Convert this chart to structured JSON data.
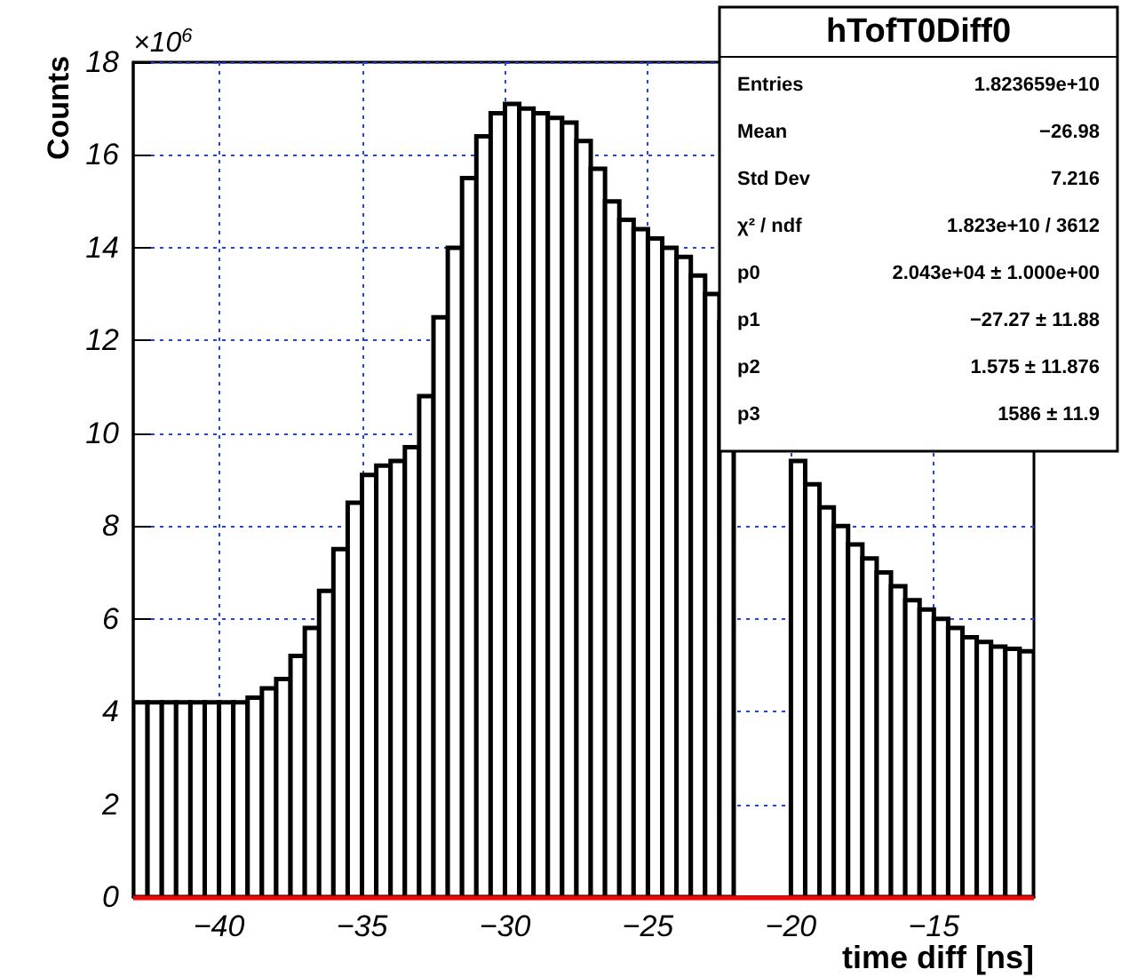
{
  "chart_data": {
    "type": "histogram",
    "title": "hTofT0Diff0",
    "xlabel": "time diff [ns]",
    "ylabel": "Counts",
    "bins": [
      -43,
      -42.5,
      -42,
      -41.5,
      -41,
      -40.5,
      -40,
      -39.5,
      -39,
      -38.5,
      -38,
      -37.5,
      -37,
      -36.5,
      -36,
      -35.5,
      -35,
      -34.5,
      -34,
      -33.5,
      -33,
      -32.5,
      -32,
      -31.5,
      -31,
      -30.5,
      -30,
      -29.5,
      -29,
      -28.5,
      -28,
      -27.5,
      -27,
      -26.5,
      -26,
      -25.5,
      -25,
      -24.5,
      -24,
      -23.5,
      -23,
      -22.5,
      -22,
      -21.5,
      -21,
      -20.5,
      -20,
      -19.5,
      -19,
      -18.5,
      -18,
      -17.5,
      -17,
      -16.5,
      -16,
      -15.5,
      -15,
      -14.5,
      -14,
      -13.5,
      -13,
      -12.5,
      -12,
      -11.5
    ],
    "values": [
      4.2,
      4.2,
      4.2,
      4.2,
      4.2,
      4.2,
      4.2,
      4.2,
      4.3,
      4.5,
      4.7,
      5.2,
      5.8,
      6.6,
      7.5,
      8.5,
      9.1,
      9.3,
      9.4,
      9.7,
      10.8,
      12.5,
      14.0,
      15.5,
      16.4,
      16.9,
      17.1,
      17.0,
      16.9,
      16.8,
      16.7,
      16.3,
      15.7,
      15.0,
      14.6,
      14.4,
      14.2,
      14.0,
      13.8,
      13.4,
      13.0,
      12.4,
      null,
      null,
      null,
      null,
      9.4,
      8.9,
      8.4,
      8.0,
      7.6,
      7.3,
      7.0,
      6.7,
      6.4,
      6.2,
      6.0,
      5.8,
      5.6,
      5.5,
      5.4,
      5.35,
      5.3
    ],
    "color": "#000000",
    "xlim": [
      -43,
      -11.5
    ],
    "xticks": [
      -40,
      -35,
      -30,
      -25,
      -20,
      -15
    ],
    "ylim": [
      0,
      18
    ],
    "yticks": [
      0,
      2,
      4,
      6,
      8,
      10,
      12,
      14,
      16,
      18
    ],
    "grid": true,
    "ref_lines": [
      {
        "axis": "y",
        "value": 0,
        "label": null,
        "color": "#ff0000"
      }
    ],
    "annotations": [
      "×10$^{6}$",
      "Entries",
      "1.823659e+10",
      "Mean",
      "−26.98",
      "Std Dev",
      "7.216",
      "χ² / ndf",
      "1.823e+10 / 3612",
      "p0",
      "2.043e+04 ± 1.000e+00",
      "p1",
      "−27.27 ± 11.88",
      "p2",
      "1.575 ± 11.876",
      "p3",
      "1586 ± 11.9"
    ]
  }
}
